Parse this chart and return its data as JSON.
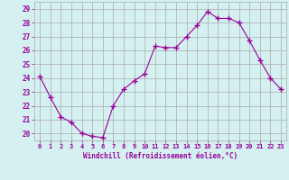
{
  "x": [
    0,
    1,
    2,
    3,
    4,
    5,
    6,
    7,
    8,
    9,
    10,
    11,
    12,
    13,
    14,
    15,
    16,
    17,
    18,
    19,
    20,
    21,
    22,
    23
  ],
  "y": [
    24.1,
    22.6,
    21.2,
    20.8,
    20.0,
    19.8,
    19.7,
    22.0,
    23.2,
    23.8,
    24.3,
    26.3,
    26.2,
    26.2,
    27.0,
    27.8,
    28.8,
    28.3,
    28.3,
    28.0,
    26.7,
    25.3,
    24.0,
    23.2
  ],
  "line_color": "#990099",
  "marker": "+",
  "marker_size": 4,
  "bg_color": "#d4f0f0",
  "grid_color": "#aaaaaa",
  "xlabel": "Windchill (Refroidissement éolien,°C)",
  "xlabel_color": "#990099",
  "tick_label_color": "#990099",
  "ylim": [
    19.5,
    29.5
  ],
  "yticks": [
    20,
    21,
    22,
    23,
    24,
    25,
    26,
    27,
    28,
    29
  ],
  "xticks": [
    0,
    1,
    2,
    3,
    4,
    5,
    6,
    7,
    8,
    9,
    10,
    11,
    12,
    13,
    14,
    15,
    16,
    17,
    18,
    19,
    20,
    21,
    22,
    23
  ],
  "xtick_labels": [
    "0",
    "1",
    "2",
    "3",
    "4",
    "5",
    "6",
    "7",
    "8",
    "9",
    "10",
    "11",
    "12",
    "13",
    "14",
    "15",
    "16",
    "17",
    "18",
    "19",
    "20",
    "21",
    "22",
    "23"
  ]
}
